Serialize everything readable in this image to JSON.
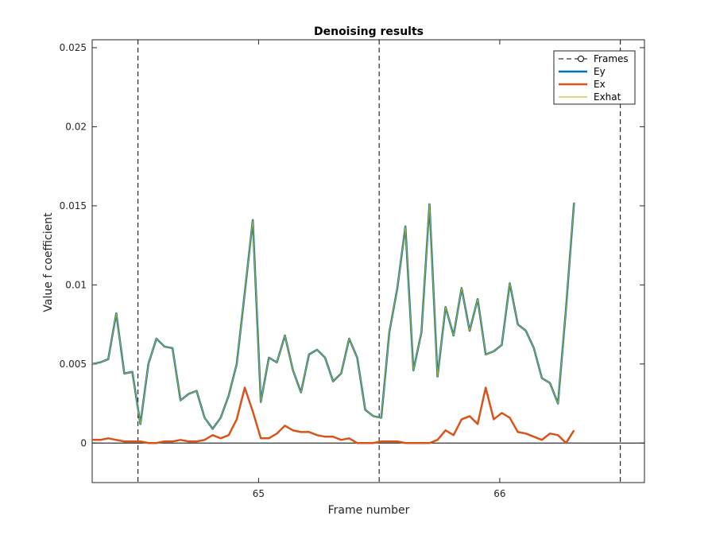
{
  "chart_data": {
    "type": "line",
    "title": "Denoising results",
    "xlabel": "Frame number",
    "ylabel": "Value f coefficient",
    "xlim": [
      64.31,
      66.6
    ],
    "ylim": [
      -0.0025,
      0.0255
    ],
    "x_ticks": [
      65,
      66
    ],
    "x_tick_labels": [
      "65",
      "66"
    ],
    "y_ticks": [
      0,
      0.005,
      0.01,
      0.015,
      0.02,
      0.025
    ],
    "y_tick_labels": [
      "0",
      "0.005",
      "0.01",
      "0.015",
      "0.02",
      "0.025"
    ],
    "legend_position": "top-right",
    "frame_boundaries": [
      64.5,
      65.5,
      66.5
    ],
    "x_step": 0.0333,
    "x_start": 64.31,
    "series": [
      {
        "name": "Frames",
        "color": "#000000",
        "style": "dashed-circle"
      },
      {
        "name": "Ey",
        "color": "#0072BD",
        "values": [
          0.005,
          0.0051,
          0.0053,
          0.0082,
          0.0044,
          0.0045,
          0.0012,
          0.005,
          0.0066,
          0.0061,
          0.006,
          0.0027,
          0.0031,
          0.0033,
          0.0016,
          0.0009,
          0.0016,
          0.003,
          0.005,
          0.0095,
          0.0141,
          0.0026,
          0.0054,
          0.0051,
          0.0068,
          0.0046,
          0.0032,
          0.0056,
          0.0059,
          0.0054,
          0.0039,
          0.0044,
          0.0066,
          0.0054,
          0.0021,
          0.0017,
          0.0016,
          0.007,
          0.0098,
          0.0137,
          0.0046,
          0.007,
          0.0151,
          0.0042,
          0.0086,
          0.0068,
          0.0098,
          0.0071,
          0.0091,
          0.0056,
          0.0058,
          0.0062,
          0.0101,
          0.0075,
          0.0071,
          0.006,
          0.0041,
          0.0038,
          0.0025,
          0.0085,
          0.0152
        ]
      },
      {
        "name": "Ex",
        "color": "#D95319",
        "values": [
          0.0002,
          0.0002,
          0.0003,
          0.0002,
          0.0001,
          0.0001,
          0.0001,
          0.0,
          0.0,
          0.0001,
          0.0001,
          0.0002,
          0.0001,
          0.0001,
          0.0002,
          0.0005,
          0.0003,
          0.0005,
          0.0015,
          0.0035,
          0.002,
          0.0003,
          0.0003,
          0.0006,
          0.0011,
          0.0008,
          0.0007,
          0.0007,
          0.0005,
          0.0004,
          0.0004,
          0.0002,
          0.0003,
          0.0,
          0.0,
          0.0,
          0.0001,
          0.0001,
          0.0001,
          0.0,
          0.0,
          0.0,
          0.0,
          0.0002,
          0.0008,
          0.0005,
          0.0015,
          0.0017,
          0.0012,
          0.0035,
          0.0015,
          0.0019,
          0.0016,
          0.0007,
          0.0006,
          0.0004,
          0.0002,
          0.0006,
          0.0005,
          0.0,
          0.0008
        ]
      },
      {
        "name": "Exhat",
        "color": "#C0B000",
        "values": [
          0.005,
          0.0051,
          0.0053,
          0.0082,
          0.0044,
          0.0045,
          0.0012,
          0.005,
          0.0066,
          0.0061,
          0.006,
          0.0027,
          0.0031,
          0.0033,
          0.0016,
          0.0009,
          0.0016,
          0.003,
          0.005,
          0.0095,
          0.0141,
          0.0026,
          0.0054,
          0.0051,
          0.0068,
          0.0046,
          0.0032,
          0.0056,
          0.0059,
          0.0054,
          0.0039,
          0.0044,
          0.0066,
          0.0054,
          0.0021,
          0.0017,
          0.0016,
          0.007,
          0.0098,
          0.0137,
          0.0046,
          0.007,
          0.0151,
          0.0042,
          0.0086,
          0.0068,
          0.0098,
          0.0071,
          0.0091,
          0.0056,
          0.0058,
          0.0062,
          0.0101,
          0.0075,
          0.0071,
          0.006,
          0.0041,
          0.0038,
          0.0025,
          0.0085,
          0.0152
        ]
      }
    ]
  }
}
